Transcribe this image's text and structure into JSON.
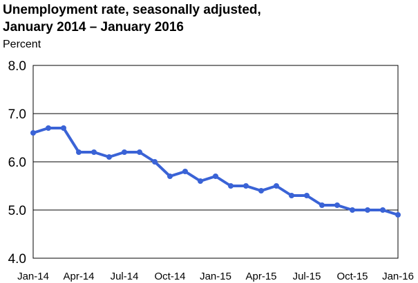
{
  "chart_data": {
    "type": "line",
    "title_lines": [
      "Unemployment rate, seasonally adjusted,",
      "January 2014 – January 2016"
    ],
    "ylabel": "Percent",
    "xlabel": "",
    "ylim": [
      4.0,
      8.0
    ],
    "yticks": [
      "4.0",
      "5.0",
      "6.0",
      "7.0",
      "8.0"
    ],
    "xtick_labels": [
      {
        "index": 0,
        "label": "Jan-14"
      },
      {
        "index": 3,
        "label": "Apr-14"
      },
      {
        "index": 6,
        "label": "Jul-14"
      },
      {
        "index": 9,
        "label": "Oct-14"
      },
      {
        "index": 12,
        "label": "Jan-15"
      },
      {
        "index": 15,
        "label": "Apr-15"
      },
      {
        "index": 18,
        "label": "Jul-15"
      },
      {
        "index": 21,
        "label": "Oct-15"
      },
      {
        "index": 24,
        "label": "Jan-16"
      }
    ],
    "x": [
      "Jan-14",
      "Feb-14",
      "Mar-14",
      "Apr-14",
      "May-14",
      "Jun-14",
      "Jul-14",
      "Aug-14",
      "Sep-14",
      "Oct-14",
      "Nov-14",
      "Dec-14",
      "Jan-15",
      "Feb-15",
      "Mar-15",
      "Apr-15",
      "May-15",
      "Jun-15",
      "Jul-15",
      "Aug-15",
      "Sep-15",
      "Oct-15",
      "Nov-15",
      "Dec-15",
      "Jan-16"
    ],
    "series": [
      {
        "values": [
          6.6,
          6.7,
          6.7,
          6.2,
          6.2,
          6.1,
          6.2,
          6.2,
          6.0,
          5.7,
          5.8,
          5.6,
          5.7,
          5.5,
          5.5,
          5.4,
          5.5,
          5.3,
          5.3,
          5.1,
          5.1,
          5.0,
          5.0,
          5.0,
          4.9
        ],
        "color": "#3a63d6"
      }
    ],
    "grid": true,
    "legend": "none"
  }
}
